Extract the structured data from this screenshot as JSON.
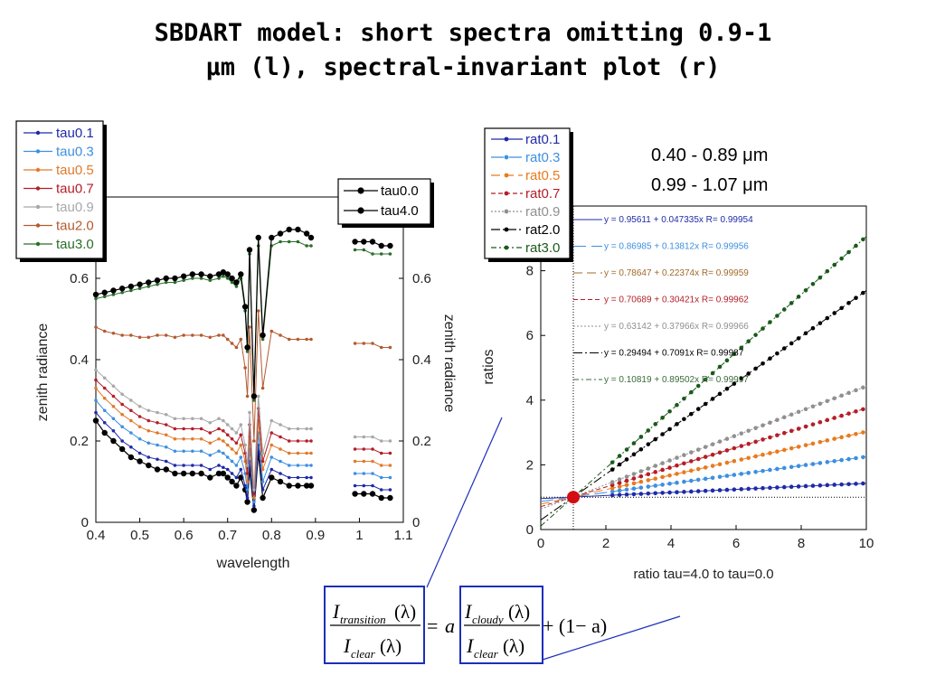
{
  "title": {
    "line1": "SBDART model: short spectra omitting 0.9-1",
    "line2": "μm (l), spectral-invariant plot (r)"
  },
  "colors": {
    "tau0.1": "#1f2aa8",
    "tau0.3": "#3d8fe0",
    "tau0.5": "#e07a2a",
    "tau0.7": "#b41e28",
    "tau0.9": "#a8a8a8",
    "tau2.0": "#b45a30",
    "tau3.0": "#2a6e2a",
    "black": "#000000",
    "rat0.5": "#e87a1e",
    "rat0.9": "#909090",
    "rat3.0": "#1a5a1a",
    "fit0.5": "#a06a2a",
    "fit3.0": "#3a6a3a"
  },
  "left_plot": {
    "xlabel": "wavelength",
    "ylabel_left": "zenith radiance",
    "ylabel_right": "zenith radiance",
    "legend_left": [
      "tau0.1",
      "tau0.3",
      "tau0.5",
      "tau0.7",
      "tau0.9",
      "tau2.0",
      "tau3.0"
    ],
    "legend_right": [
      "tau0.0",
      "tau4.0"
    ]
  },
  "right_plot": {
    "xlabel": "ratio tau=4.0 to tau=0.0",
    "ylabel": "ratios",
    "legend": [
      "rat0.1",
      "rat0.3",
      "rat0.5",
      "rat0.7",
      "rat0.9",
      "rat2.0",
      "rat3.0"
    ],
    "range1": "0.40 - 0.89 μm",
    "range2": "0.99 - 1.07 μm",
    "fits": [
      "y = 0.95611 + 0.047335x   R= 0.99954",
      "y = 0.86985 + 0.13812x   R= 0.99956",
      "y = 0.78647 + 0.22374x   R= 0.99959",
      "y = 0.70689 + 0.30421x   R= 0.99962",
      "y = 0.63142 + 0.37966x   R= 0.99966",
      "y = 0.29494 + 0.7091x   R= 0.99987",
      "y = 0.10819 + 0.89502x   R= 0.99997"
    ]
  },
  "equation": {
    "num_I": "I",
    "num_sub": "transition",
    "den_I": "I",
    "den_sub": "clear",
    "lam": "(λ)",
    "eq": "=",
    "a": "a",
    "cloudy_sub": "cloudy",
    "rest": "+ (1− a)"
  },
  "chart_data": [
    {
      "type": "line",
      "xlabel": "wavelength",
      "ylabel": "zenith radiance",
      "xlim": [
        0.4,
        1.1
      ],
      "ylim": [
        0,
        0.8
      ],
      "xticks": [
        0.4,
        0.5,
        0.6,
        0.7,
        0.8,
        0.9,
        1.0,
        1.1
      ],
      "xticklabels": [
        "0.4",
        "0.5",
        "0.6",
        "0.7",
        "0.8",
        "0.9",
        "1",
        "1.1"
      ],
      "yticks": [
        0,
        0.2,
        0.4,
        0.6
      ],
      "yticklabels": [
        "0",
        "0.2",
        "0.4",
        "0.6"
      ],
      "series": [
        {
          "name": "tau0.0",
          "values": [
            0.25,
            0.22,
            0.2,
            0.18,
            0.16,
            0.15,
            0.14,
            0.13,
            0.13,
            0.12,
            0.12,
            0.12,
            0.12,
            0.11,
            0.12,
            0.12,
            0.11,
            0.1,
            0.09,
            0.11,
            0.08,
            0.05,
            0.13,
            0.03,
            0.17,
            0.06,
            0.11,
            0.1,
            0.09,
            0.09,
            0.09,
            0.09,
            0.07,
            0.07,
            0.07,
            0.06,
            0.06
          ]
        },
        {
          "name": "tau0.1",
          "values": [
            0.27,
            0.245,
            0.225,
            0.2,
            0.185,
            0.17,
            0.16,
            0.155,
            0.15,
            0.14,
            0.14,
            0.14,
            0.14,
            0.13,
            0.14,
            0.135,
            0.13,
            0.12,
            0.11,
            0.13,
            0.09,
            0.06,
            0.15,
            0.04,
            0.19,
            0.08,
            0.13,
            0.12,
            0.11,
            0.11,
            0.11,
            0.11,
            0.09,
            0.09,
            0.09,
            0.08,
            0.08
          ]
        },
        {
          "name": "tau0.3",
          "values": [
            0.3,
            0.275,
            0.255,
            0.235,
            0.22,
            0.205,
            0.195,
            0.19,
            0.185,
            0.175,
            0.175,
            0.175,
            0.175,
            0.165,
            0.175,
            0.17,
            0.16,
            0.15,
            0.14,
            0.16,
            0.12,
            0.08,
            0.18,
            0.05,
            0.22,
            0.1,
            0.16,
            0.15,
            0.14,
            0.14,
            0.14,
            0.14,
            0.12,
            0.12,
            0.12,
            0.11,
            0.11
          ]
        },
        {
          "name": "tau0.5",
          "values": [
            0.33,
            0.305,
            0.285,
            0.265,
            0.25,
            0.235,
            0.225,
            0.22,
            0.215,
            0.205,
            0.205,
            0.205,
            0.205,
            0.195,
            0.205,
            0.2,
            0.19,
            0.18,
            0.17,
            0.19,
            0.15,
            0.1,
            0.21,
            0.06,
            0.25,
            0.13,
            0.19,
            0.18,
            0.17,
            0.17,
            0.17,
            0.17,
            0.15,
            0.15,
            0.15,
            0.14,
            0.14
          ]
        },
        {
          "name": "tau0.7",
          "values": [
            0.35,
            0.33,
            0.31,
            0.29,
            0.275,
            0.26,
            0.25,
            0.245,
            0.24,
            0.23,
            0.23,
            0.23,
            0.23,
            0.22,
            0.23,
            0.225,
            0.215,
            0.205,
            0.195,
            0.215,
            0.17,
            0.12,
            0.24,
            0.07,
            0.28,
            0.15,
            0.22,
            0.21,
            0.2,
            0.2,
            0.2,
            0.2,
            0.18,
            0.18,
            0.18,
            0.17,
            0.17
          ]
        },
        {
          "name": "tau0.9",
          "values": [
            0.375,
            0.355,
            0.335,
            0.315,
            0.3,
            0.285,
            0.275,
            0.27,
            0.265,
            0.255,
            0.255,
            0.255,
            0.255,
            0.245,
            0.255,
            0.25,
            0.24,
            0.23,
            0.22,
            0.24,
            0.19,
            0.14,
            0.27,
            0.08,
            0.31,
            0.17,
            0.25,
            0.24,
            0.23,
            0.23,
            0.23,
            0.23,
            0.21,
            0.21,
            0.21,
            0.2,
            0.2
          ]
        },
        {
          "name": "tau2.0",
          "values": [
            0.48,
            0.47,
            0.465,
            0.46,
            0.46,
            0.455,
            0.455,
            0.46,
            0.46,
            0.455,
            0.46,
            0.46,
            0.46,
            0.455,
            0.46,
            0.46,
            0.45,
            0.44,
            0.43,
            0.45,
            0.38,
            0.31,
            0.48,
            0.2,
            0.52,
            0.33,
            0.47,
            0.46,
            0.45,
            0.45,
            0.45,
            0.45,
            0.44,
            0.44,
            0.44,
            0.43,
            0.43
          ]
        },
        {
          "name": "tau3.0",
          "values": [
            0.55,
            0.555,
            0.56,
            0.565,
            0.57,
            0.575,
            0.58,
            0.585,
            0.59,
            0.59,
            0.595,
            0.6,
            0.6,
            0.595,
            0.6,
            0.605,
            0.6,
            0.59,
            0.58,
            0.6,
            0.52,
            0.42,
            0.66,
            0.3,
            0.68,
            0.45,
            0.68,
            0.69,
            0.69,
            0.69,
            0.68,
            0.68,
            0.67,
            0.67,
            0.66,
            0.66,
            0.66
          ]
        },
        {
          "name": "tau4.0",
          "values": [
            0.56,
            0.565,
            0.57,
            0.575,
            0.58,
            0.585,
            0.59,
            0.595,
            0.6,
            0.6,
            0.605,
            0.61,
            0.61,
            0.605,
            0.61,
            0.615,
            0.61,
            0.6,
            0.59,
            0.61,
            0.53,
            0.43,
            0.67,
            0.31,
            0.7,
            0.46,
            0.7,
            0.71,
            0.72,
            0.72,
            0.71,
            0.7,
            0.69,
            0.69,
            0.69,
            0.68,
            0.68
          ]
        }
      ],
      "x": [
        0.4,
        0.42,
        0.44,
        0.46,
        0.48,
        0.5,
        0.52,
        0.54,
        0.56,
        0.58,
        0.6,
        0.62,
        0.64,
        0.66,
        0.68,
        0.69,
        0.7,
        0.71,
        0.72,
        0.73,
        0.74,
        0.745,
        0.75,
        0.76,
        0.77,
        0.78,
        0.8,
        0.82,
        0.84,
        0.86,
        0.88,
        0.89,
        0.99,
        1.01,
        1.03,
        1.05,
        1.07
      ]
    },
    {
      "type": "scatter",
      "xlabel": "ratio tau=4.0 to tau=0.0",
      "ylabel": "ratios",
      "xlim": [
        0,
        10
      ],
      "ylim": [
        0,
        10
      ],
      "xticks": [
        0,
        2,
        4,
        6,
        8,
        10
      ],
      "yticks": [
        0,
        2,
        4,
        6,
        8
      ],
      "series": [
        {
          "name": "rat0.1",
          "intercept": 0.95611,
          "slope": 0.047335,
          "x_range": [
            2.2,
            10
          ]
        },
        {
          "name": "rat0.3",
          "intercept": 0.86985,
          "slope": 0.13812,
          "x_range": [
            2.2,
            10
          ]
        },
        {
          "name": "rat0.5",
          "intercept": 0.78647,
          "slope": 0.22374,
          "x_range": [
            2.2,
            10
          ]
        },
        {
          "name": "rat0.7",
          "intercept": 0.70689,
          "slope": 0.30421,
          "x_range": [
            2.2,
            10
          ]
        },
        {
          "name": "rat0.9",
          "intercept": 0.63142,
          "slope": 0.37966,
          "x_range": [
            2.2,
            10
          ]
        },
        {
          "name": "rat2.0",
          "intercept": 0.29494,
          "slope": 0.7091,
          "x_range": [
            2.2,
            10
          ]
        },
        {
          "name": "rat3.0",
          "intercept": 0.10819,
          "slope": 0.89502,
          "x_range": [
            2.2,
            10
          ]
        }
      ],
      "marker": {
        "x": 1,
        "y": 1
      }
    }
  ]
}
